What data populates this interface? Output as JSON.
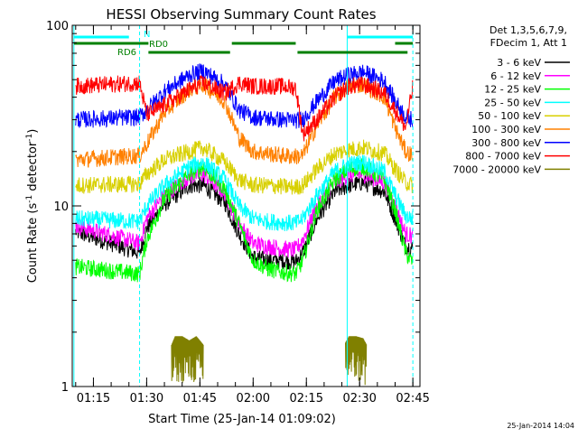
{
  "chart_data": {
    "type": "line",
    "title": "HESSI Observing Summary Count Rates",
    "xlabel": "Start Time (25-Jan-14 01:09:02)",
    "ylabel_main": "Count Rate (s",
    "ylabel_sup1": "-1",
    "ylabel_mid": " detector",
    "ylabel_sup2": "-1",
    "ylabel_end": ")",
    "y_scale": "log",
    "ylim": [
      1,
      100
    ],
    "xlim": [
      "01:09:02",
      "02:47:00"
    ],
    "y_ticks": [
      {
        "value": 1,
        "label": "1"
      },
      {
        "value": 10,
        "label": "10"
      },
      {
        "value": 100,
        "label": "100"
      }
    ],
    "x_ticks": [
      {
        "value": "01:15",
        "label": "01:15"
      },
      {
        "value": "01:30",
        "label": "01:30"
      },
      {
        "value": "01:45",
        "label": "01:45"
      },
      {
        "value": "02:00",
        "label": "02:00"
      },
      {
        "value": "02:15",
        "label": "02:15"
      },
      {
        "value": "02:30",
        "label": "02:30"
      },
      {
        "value": "02:45",
        "label": "02:45"
      }
    ],
    "legend": {
      "placement": "right",
      "header": [
        "Det 1,3,5,6,7,9,",
        "FDecim 1, Att 1"
      ],
      "entries": [
        {
          "label": "3 - 6 keV",
          "color": "#000000"
        },
        {
          "label": "6 - 12 keV",
          "color": "#ff00ff"
        },
        {
          "label": "12 - 25 keV",
          "color": "#00ff00"
        },
        {
          "label": "25 - 50 keV",
          "color": "#00ffff"
        },
        {
          "label": "50 - 100 keV",
          "color": "#d8d000"
        },
        {
          "label": "100 - 300 keV",
          "color": "#ff8000"
        },
        {
          "label": "300 - 800 keV",
          "color": "#0000ff"
        },
        {
          "label": "800 - 7000 keV",
          "color": "#ff0000"
        },
        {
          "label": "7000 - 20000 keV",
          "color": "#808000"
        }
      ]
    },
    "series": [
      {
        "name": "3 - 6 keV",
        "color": "#000000",
        "points": [
          [
            "01:10",
            7.2
          ],
          [
            "01:28",
            5.5
          ],
          [
            "01:30",
            7.5
          ],
          [
            "01:35",
            10.2
          ],
          [
            "01:42",
            13
          ],
          [
            "01:46",
            13
          ],
          [
            "01:52",
            10.5
          ],
          [
            "01:56",
            7
          ],
          [
            "02:00",
            5.2
          ],
          [
            "02:04",
            5
          ],
          [
            "02:08",
            5
          ],
          [
            "02:12",
            4.9
          ],
          [
            "02:14",
            5.5
          ],
          [
            "02:18",
            8.5
          ],
          [
            "02:23",
            12
          ],
          [
            "02:27",
            13
          ],
          [
            "02:31",
            13.5
          ],
          [
            "02:37",
            12
          ],
          [
            "02:40",
            8.5
          ],
          [
            "02:43",
            6
          ],
          [
            "02:45",
            5.8
          ]
        ]
      },
      {
        "name": "6 - 12 keV",
        "color": "#ff00ff",
        "points": [
          [
            "01:10",
            7.8
          ],
          [
            "01:28",
            6.2
          ],
          [
            "01:30",
            8.5
          ],
          [
            "01:35",
            11.5
          ],
          [
            "01:42",
            14.5
          ],
          [
            "01:46",
            15
          ],
          [
            "01:52",
            11.8
          ],
          [
            "01:56",
            8
          ],
          [
            "02:00",
            6.2
          ],
          [
            "02:04",
            6
          ],
          [
            "02:08",
            5.8
          ],
          [
            "02:12",
            5.7
          ],
          [
            "02:14",
            6.5
          ],
          [
            "02:18",
            10
          ],
          [
            "02:23",
            13.5
          ],
          [
            "02:27",
            14.8
          ],
          [
            "02:31",
            15
          ],
          [
            "02:37",
            13.5
          ],
          [
            "02:40",
            10
          ],
          [
            "02:43",
            7
          ],
          [
            "02:45",
            6.8
          ]
        ]
      },
      {
        "name": "12 - 25 keV",
        "color": "#00ff00",
        "points": [
          [
            "01:10",
            4.6
          ],
          [
            "01:28",
            4.2
          ],
          [
            "01:30",
            6.5
          ],
          [
            "01:35",
            11
          ],
          [
            "01:42",
            15
          ],
          [
            "01:46",
            16.5
          ],
          [
            "01:52",
            12.5
          ],
          [
            "01:56",
            8
          ],
          [
            "02:00",
            5
          ],
          [
            "02:04",
            4.5
          ],
          [
            "02:08",
            4.3
          ],
          [
            "02:12",
            4.2
          ],
          [
            "02:14",
            5
          ],
          [
            "02:18",
            9.5
          ],
          [
            "02:23",
            14
          ],
          [
            "02:27",
            16
          ],
          [
            "02:31",
            16.5
          ],
          [
            "02:37",
            14
          ],
          [
            "02:40",
            9.5
          ],
          [
            "02:43",
            5.5
          ],
          [
            "02:45",
            4.8
          ]
        ]
      },
      {
        "name": "25 - 50 keV",
        "color": "#00ffff",
        "points": [
          [
            "01:10",
            8.5
          ],
          [
            "01:28",
            8.2
          ],
          [
            "01:30",
            10
          ],
          [
            "01:35",
            13
          ],
          [
            "01:42",
            16.5
          ],
          [
            "01:46",
            17.5
          ],
          [
            "01:52",
            14
          ],
          [
            "01:56",
            10
          ],
          [
            "02:00",
            8.5
          ],
          [
            "02:04",
            8.2
          ],
          [
            "02:08",
            8.1
          ],
          [
            "02:12",
            8
          ],
          [
            "02:14",
            8.5
          ],
          [
            "02:18",
            11.5
          ],
          [
            "02:23",
            15.5
          ],
          [
            "02:27",
            17
          ],
          [
            "02:31",
            17.5
          ],
          [
            "02:37",
            15.5
          ],
          [
            "02:40",
            11.5
          ],
          [
            "02:43",
            8.8
          ],
          [
            "02:45",
            8.5
          ]
        ]
      },
      {
        "name": "50 - 100 keV",
        "color": "#d8d000",
        "points": [
          [
            "01:10",
            13
          ],
          [
            "01:28",
            13.2
          ],
          [
            "01:30",
            15
          ],
          [
            "01:35",
            18
          ],
          [
            "01:42",
            20
          ],
          [
            "01:46",
            21
          ],
          [
            "01:52",
            17.5
          ],
          [
            "01:56",
            14
          ],
          [
            "02:00",
            13
          ],
          [
            "02:04",
            13
          ],
          [
            "02:08",
            12.8
          ],
          [
            "02:12",
            12.7
          ],
          [
            "02:14",
            13
          ],
          [
            "02:18",
            16
          ],
          [
            "02:23",
            19.5
          ],
          [
            "02:27",
            20.5
          ],
          [
            "02:31",
            21
          ],
          [
            "02:37",
            19.5
          ],
          [
            "02:40",
            16
          ],
          [
            "02:43",
            13.5
          ],
          [
            "02:45",
            13
          ]
        ]
      },
      {
        "name": "100 - 300 keV",
        "color": "#ff8000",
        "points": [
          [
            "01:10",
            18
          ],
          [
            "01:28",
            19
          ],
          [
            "01:30",
            22
          ],
          [
            "01:35",
            33
          ],
          [
            "01:42",
            44
          ],
          [
            "01:46",
            47
          ],
          [
            "01:52",
            38
          ],
          [
            "01:56",
            24
          ],
          [
            "02:00",
            20
          ],
          [
            "02:04",
            19.5
          ],
          [
            "02:08",
            19
          ],
          [
            "02:12",
            18.8
          ],
          [
            "02:14",
            19
          ],
          [
            "02:18",
            28
          ],
          [
            "02:23",
            40
          ],
          [
            "02:27",
            46
          ],
          [
            "02:31",
            47
          ],
          [
            "02:37",
            40
          ],
          [
            "02:40",
            27
          ],
          [
            "02:43",
            20
          ],
          [
            "02:45",
            19
          ]
        ]
      },
      {
        "name": "300 - 800 keV",
        "color": "#0000ff",
        "points": [
          [
            "01:10",
            30
          ],
          [
            "01:28",
            31
          ],
          [
            "01:30",
            34
          ],
          [
            "01:35",
            43
          ],
          [
            "01:42",
            53
          ],
          [
            "01:46",
            56
          ],
          [
            "01:52",
            47
          ],
          [
            "01:56",
            34
          ],
          [
            "02:00",
            31
          ],
          [
            "02:04",
            30.5
          ],
          [
            "02:08",
            30
          ],
          [
            "02:12",
            29.8
          ],
          [
            "02:14",
            30
          ],
          [
            "02:18",
            38
          ],
          [
            "02:23",
            49
          ],
          [
            "02:27",
            53
          ],
          [
            "02:31",
            55
          ],
          [
            "02:37",
            49
          ],
          [
            "02:40",
            38
          ],
          [
            "02:43",
            31
          ],
          [
            "02:45",
            30
          ]
        ]
      },
      {
        "name": "800 - 7000 keV",
        "color": "#ff0000",
        "points": [
          [
            "01:10",
            46
          ],
          [
            "01:28",
            48
          ],
          [
            "01:30",
            32
          ],
          [
            "01:35",
            36
          ],
          [
            "01:42",
            44
          ],
          [
            "01:46",
            48
          ],
          [
            "01:52",
            42
          ],
          [
            "01:56",
            48
          ],
          [
            "02:00",
            46
          ],
          [
            "02:04",
            46
          ],
          [
            "02:08",
            46
          ],
          [
            "02:12",
            45
          ],
          [
            "02:14",
            25
          ],
          [
            "02:18",
            30
          ],
          [
            "02:23",
            40
          ],
          [
            "02:27",
            46
          ],
          [
            "02:31",
            47
          ],
          [
            "02:37",
            42
          ],
          [
            "02:40",
            34
          ],
          [
            "02:43",
            27
          ],
          [
            "02:45",
            46
          ]
        ]
      },
      {
        "name": "7000 - 20000 keV",
        "color": "#808000",
        "segments": [
          [
            [
              "01:37",
              1.7
            ],
            [
              "01:38",
              1.9
            ],
            [
              "01:40",
              1.9
            ],
            [
              "01:42",
              1.8
            ],
            [
              "01:44",
              1.9
            ],
            [
              "01:45",
              1.8
            ],
            [
              "01:46",
              1.7
            ]
          ],
          [
            [
              "02:26",
              1.75
            ],
            [
              "02:27",
              1.9
            ],
            [
              "02:29",
              1.9
            ],
            [
              "02:31",
              1.85
            ],
            [
              "02:32",
              1.7
            ]
          ]
        ]
      }
    ],
    "annotations": {
      "flag_labels": [
        "N",
        "RD0",
        "RD6"
      ],
      "bars": [
        {
          "label": "N",
          "color": "#00ffff",
          "from": "01:09:30",
          "to": "01:25:00"
        },
        {
          "label": "N",
          "color": "#00ffff",
          "from": "02:26:30",
          "to": "02:45:00"
        },
        {
          "label": "RD0",
          "color": "#008000",
          "from": "01:09:30",
          "to": "01:30:30"
        },
        {
          "label": "RD0",
          "color": "#008000",
          "from": "01:54:00",
          "to": "02:12:00"
        },
        {
          "label": "RD0",
          "color": "#008000",
          "from": "02:40:00",
          "to": "02:45:00"
        },
        {
          "label": "RD6",
          "color": "#008000",
          "from": "01:30:30",
          "to": "01:53:30"
        },
        {
          "label": "RD6",
          "color": "#008000",
          "from": "02:12:30",
          "to": "02:43:30"
        }
      ],
      "solid_lines": [
        "01:09:30",
        "02:26:30"
      ],
      "dashed_lines": [
        "01:28:00",
        "02:45:00"
      ]
    },
    "footer_date": "25-Jan-2014 14:04"
  },
  "colors": {
    "axes": "#000000",
    "background": "#ffffff",
    "night": "#00ffff",
    "rd": "#008000"
  }
}
